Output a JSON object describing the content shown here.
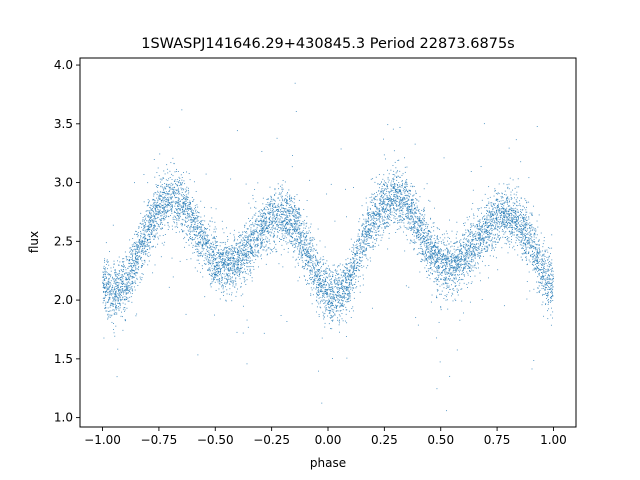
{
  "chart_data": {
    "type": "scatter",
    "title": "1SWASPJ141646.29+430845.3 Period 22873.6875s",
    "xlabel": "phase",
    "ylabel": "flux",
    "xlim": [
      -1.1,
      1.1
    ],
    "ylim": [
      0.92,
      4.06
    ],
    "x_ticks": [
      -1.0,
      -0.75,
      -0.5,
      -0.25,
      0.0,
      0.25,
      0.5,
      0.75,
      1.0
    ],
    "x_tick_labels": [
      "−1.00",
      "−0.75",
      "−0.50",
      "−0.25",
      "0.00",
      "0.25",
      "0.50",
      "0.75",
      "1.00"
    ],
    "y_ticks": [
      1.0,
      1.5,
      2.0,
      2.5,
      3.0,
      3.5,
      4.0
    ],
    "y_tick_labels": [
      "1.0",
      "1.5",
      "2.0",
      "2.5",
      "3.0",
      "3.5",
      "4.0"
    ],
    "grid": false,
    "legend": "none",
    "point_color": "#1f77b4",
    "light_curve_trend": {
      "phase": [
        -1.0,
        -0.95,
        -0.9,
        -0.85,
        -0.8,
        -0.75,
        -0.7,
        -0.65,
        -0.6,
        -0.55,
        -0.5,
        -0.45,
        -0.4,
        -0.35,
        -0.3,
        -0.25,
        -0.2,
        -0.15,
        -0.1,
        -0.05,
        0.0,
        0.05,
        0.1,
        0.15,
        0.2,
        0.25,
        0.3,
        0.35,
        0.4,
        0.45,
        0.5,
        0.55,
        0.6,
        0.65,
        0.7,
        0.75,
        0.8,
        0.85,
        0.9,
        0.95,
        1.0
      ],
      "flux": [
        2.12,
        2.05,
        2.12,
        2.35,
        2.6,
        2.78,
        2.87,
        2.82,
        2.65,
        2.47,
        2.33,
        2.28,
        2.33,
        2.45,
        2.58,
        2.68,
        2.72,
        2.65,
        2.45,
        2.2,
        2.06,
        2.05,
        2.2,
        2.45,
        2.68,
        2.82,
        2.88,
        2.82,
        2.62,
        2.43,
        2.3,
        2.28,
        2.35,
        2.47,
        2.6,
        2.7,
        2.72,
        2.65,
        2.48,
        2.25,
        2.1
      ]
    },
    "scatter_std": 0.12,
    "n_points": 9000
  }
}
